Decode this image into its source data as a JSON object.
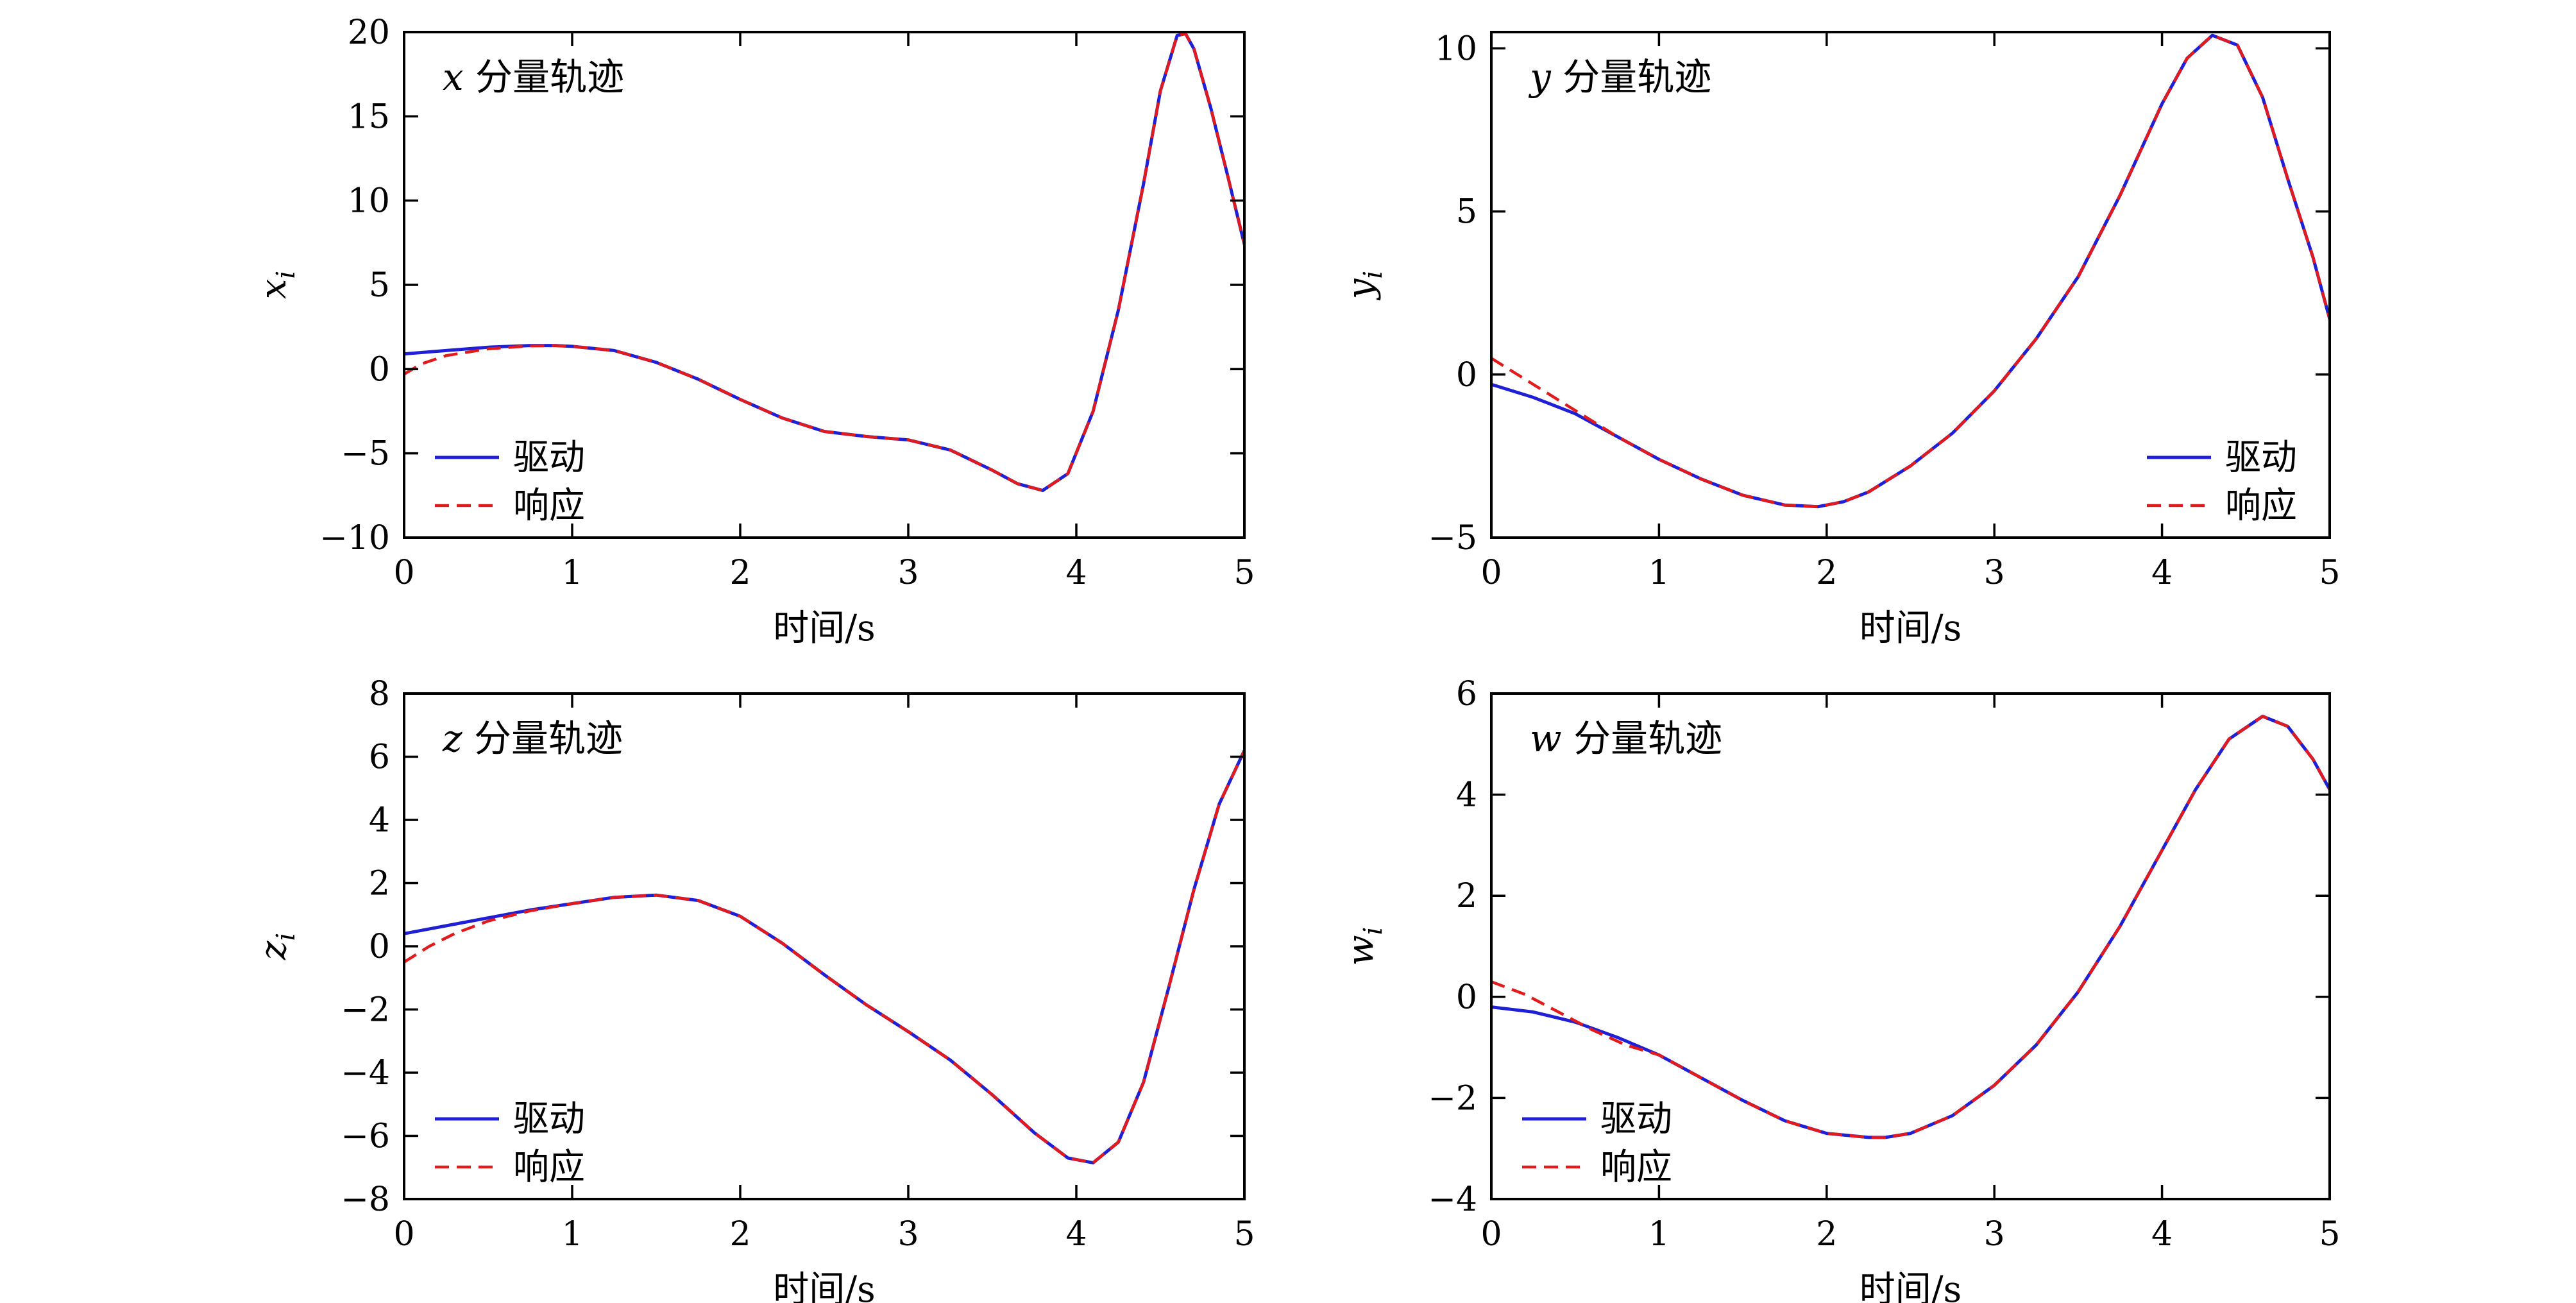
{
  "figure": {
    "background": "#ffffff"
  },
  "colors": {
    "drive": "#1f1fd6",
    "response": "#e31a1c"
  },
  "chart_data": [
    {
      "type": "line",
      "annotation": {
        "var": "x",
        "text": "分量轨迹"
      },
      "xlabel": "时间/s",
      "ylabel": {
        "main": "x",
        "sub": "i"
      },
      "xlim": [
        0,
        5
      ],
      "ylim": [
        -10,
        20
      ],
      "xticks": [
        0,
        1,
        2,
        3,
        4,
        5
      ],
      "yticks": [
        -10,
        -5,
        0,
        5,
        10,
        15,
        20
      ],
      "ytick_labels": [
        "−10",
        "−5",
        "0",
        "5",
        "10",
        "15",
        "20"
      ],
      "legend": {
        "position": "bottom-left",
        "entries": [
          "驱动",
          "响应"
        ]
      },
      "series": [
        {
          "name": "驱动",
          "style": "solid",
          "x": [
            0,
            0.25,
            0.5,
            0.75,
            0.9,
            1.0,
            1.25,
            1.5,
            1.75,
            2.0,
            2.25,
            2.5,
            2.75,
            3.0,
            3.25,
            3.5,
            3.65,
            3.8,
            3.95,
            4.1,
            4.25,
            4.4,
            4.5,
            4.6,
            4.65,
            4.7,
            4.8,
            4.9,
            5.0
          ],
          "y": [
            0.9,
            1.1,
            1.3,
            1.4,
            1.4,
            1.35,
            1.1,
            0.4,
            -0.6,
            -1.8,
            -2.9,
            -3.7,
            -4.0,
            -4.2,
            -4.8,
            -6.0,
            -6.8,
            -7.2,
            -6.2,
            -2.5,
            3.5,
            11.0,
            16.5,
            19.8,
            19.9,
            19.0,
            15.5,
            11.5,
            7.4
          ]
        },
        {
          "name": "响应",
          "style": "dashed",
          "x": [
            0,
            0.1,
            0.25,
            0.5,
            0.75,
            0.9,
            1.0,
            1.25,
            1.5,
            1.75,
            2.0,
            2.25,
            2.5,
            2.75,
            3.0,
            3.25,
            3.5,
            3.65,
            3.8,
            3.95,
            4.1,
            4.25,
            4.4,
            4.5,
            4.6,
            4.65,
            4.7,
            4.8,
            4.9,
            5.0
          ],
          "y": [
            -0.3,
            0.3,
            0.8,
            1.2,
            1.38,
            1.4,
            1.35,
            1.1,
            0.4,
            -0.6,
            -1.8,
            -2.9,
            -3.7,
            -4.0,
            -4.2,
            -4.8,
            -6.0,
            -6.8,
            -7.2,
            -6.2,
            -2.5,
            3.5,
            11.0,
            16.5,
            19.8,
            19.9,
            19.0,
            15.5,
            11.5,
            7.4
          ]
        }
      ]
    },
    {
      "type": "line",
      "annotation": {
        "var": "y",
        "text": "分量轨迹"
      },
      "xlabel": "时间/s",
      "ylabel": {
        "main": "y",
        "sub": "i"
      },
      "xlim": [
        0,
        5
      ],
      "ylim": [
        -5,
        10.5
      ],
      "xticks": [
        0,
        1,
        2,
        3,
        4,
        5
      ],
      "yticks": [
        -5,
        0,
        5,
        10
      ],
      "ytick_labels": [
        "−5",
        "0",
        "5",
        "10"
      ],
      "legend": {
        "position": "bottom-right",
        "entries": [
          "驱动",
          "响应"
        ]
      },
      "series": [
        {
          "name": "驱动",
          "style": "solid",
          "x": [
            0,
            0.25,
            0.5,
            0.75,
            1.0,
            1.25,
            1.5,
            1.75,
            1.95,
            2.1,
            2.25,
            2.5,
            2.75,
            3.0,
            3.25,
            3.5,
            3.75,
            4.0,
            4.15,
            4.3,
            4.45,
            4.6,
            4.75,
            4.9,
            5.0
          ],
          "y": [
            -0.3,
            -0.7,
            -1.2,
            -1.9,
            -2.6,
            -3.2,
            -3.7,
            -4.0,
            -4.05,
            -3.9,
            -3.6,
            -2.8,
            -1.8,
            -0.5,
            1.1,
            3.0,
            5.5,
            8.3,
            9.7,
            10.4,
            10.1,
            8.5,
            6.0,
            3.6,
            1.7
          ]
        },
        {
          "name": "响应",
          "style": "dashed",
          "x": [
            0,
            0.25,
            0.5,
            0.75,
            1.0,
            1.25,
            1.5,
            1.75,
            1.95,
            2.1,
            2.25,
            2.5,
            2.75,
            3.0,
            3.25,
            3.5,
            3.75,
            4.0,
            4.15,
            4.3,
            4.45,
            4.6,
            4.75,
            4.9,
            5.0
          ],
          "y": [
            0.5,
            -0.3,
            -1.1,
            -1.9,
            -2.6,
            -3.2,
            -3.7,
            -4.0,
            -4.05,
            -3.9,
            -3.6,
            -2.8,
            -1.8,
            -0.5,
            1.1,
            3.0,
            5.5,
            8.3,
            9.7,
            10.4,
            10.1,
            8.5,
            6.0,
            3.6,
            1.7
          ]
        }
      ]
    },
    {
      "type": "line",
      "annotation": {
        "var": "z",
        "text": "分量轨迹"
      },
      "xlabel": "时间/s",
      "ylabel": {
        "main": "z",
        "sub": "i"
      },
      "xlim": [
        0,
        5
      ],
      "ylim": [
        -8,
        8
      ],
      "xticks": [
        0,
        1,
        2,
        3,
        4,
        5
      ],
      "yticks": [
        -8,
        -6,
        -4,
        -2,
        0,
        2,
        4,
        6,
        8
      ],
      "ytick_labels": [
        "−8",
        "−6",
        "−4",
        "−2",
        "0",
        "2",
        "4",
        "6",
        "8"
      ],
      "legend": {
        "position": "bottom-left",
        "entries": [
          "驱动",
          "响应"
        ]
      },
      "series": [
        {
          "name": "驱动",
          "style": "solid",
          "x": [
            0,
            0.25,
            0.5,
            0.75,
            1.0,
            1.25,
            1.5,
            1.75,
            2.0,
            2.25,
            2.5,
            2.75,
            3.0,
            3.25,
            3.5,
            3.75,
            3.95,
            4.1,
            4.25,
            4.4,
            4.55,
            4.7,
            4.85,
            5.0
          ],
          "y": [
            0.4,
            0.65,
            0.9,
            1.15,
            1.35,
            1.55,
            1.62,
            1.45,
            0.95,
            0.1,
            -0.9,
            -1.85,
            -2.7,
            -3.6,
            -4.7,
            -5.9,
            -6.7,
            -6.85,
            -6.2,
            -4.3,
            -1.3,
            1.8,
            4.5,
            6.2
          ]
        },
        {
          "name": "响应",
          "style": "dashed",
          "x": [
            0,
            0.15,
            0.3,
            0.5,
            0.75,
            1.0,
            1.25,
            1.5,
            1.75,
            2.0,
            2.25,
            2.5,
            2.75,
            3.0,
            3.25,
            3.5,
            3.75,
            3.95,
            4.1,
            4.25,
            4.4,
            4.55,
            4.7,
            4.85,
            5.0
          ],
          "y": [
            -0.5,
            0.0,
            0.4,
            0.8,
            1.12,
            1.35,
            1.55,
            1.62,
            1.45,
            0.95,
            0.1,
            -0.9,
            -1.85,
            -2.7,
            -3.6,
            -4.7,
            -5.9,
            -6.7,
            -6.85,
            -6.2,
            -4.3,
            -1.3,
            1.8,
            4.5,
            6.2
          ]
        }
      ]
    },
    {
      "type": "line",
      "annotation": {
        "var": "w",
        "text": "分量轨迹"
      },
      "xlabel": "时间/s",
      "ylabel": {
        "main": "w",
        "sub": "i"
      },
      "xlim": [
        0,
        5
      ],
      "ylim": [
        -4,
        6
      ],
      "xticks": [
        0,
        1,
        2,
        3,
        4,
        5
      ],
      "yticks": [
        -4,
        -2,
        0,
        2,
        4,
        6
      ],
      "ytick_labels": [
        "−4",
        "−2",
        "0",
        "2",
        "4",
        "6"
      ],
      "legend": {
        "position": "bottom-left",
        "entries": [
          "驱动",
          "响应"
        ]
      },
      "series": [
        {
          "name": "驱动",
          "style": "solid",
          "x": [
            0,
            0.25,
            0.5,
            0.75,
            1.0,
            1.25,
            1.5,
            1.75,
            2.0,
            2.25,
            2.35,
            2.5,
            2.75,
            3.0,
            3.25,
            3.5,
            3.75,
            4.0,
            4.2,
            4.4,
            4.6,
            4.75,
            4.9,
            5.0
          ],
          "y": [
            -0.2,
            -0.3,
            -0.5,
            -0.8,
            -1.15,
            -1.6,
            -2.05,
            -2.45,
            -2.7,
            -2.78,
            -2.78,
            -2.7,
            -2.35,
            -1.75,
            -0.95,
            0.1,
            1.4,
            2.9,
            4.1,
            5.1,
            5.55,
            5.35,
            4.7,
            4.1
          ]
        },
        {
          "name": "响应",
          "style": "dashed",
          "x": [
            0,
            0.2,
            0.4,
            0.6,
            0.8,
            1.0,
            1.25,
            1.5,
            1.75,
            2.0,
            2.25,
            2.35,
            2.5,
            2.75,
            3.0,
            3.25,
            3.5,
            3.75,
            4.0,
            4.2,
            4.4,
            4.6,
            4.75,
            4.9,
            5.0
          ],
          "y": [
            0.3,
            0.05,
            -0.3,
            -0.65,
            -0.95,
            -1.15,
            -1.6,
            -2.05,
            -2.45,
            -2.7,
            -2.78,
            -2.78,
            -2.7,
            -2.35,
            -1.75,
            -0.95,
            0.1,
            1.4,
            2.9,
            4.1,
            5.1,
            5.55,
            5.35,
            4.7,
            4.1
          ]
        }
      ]
    }
  ]
}
